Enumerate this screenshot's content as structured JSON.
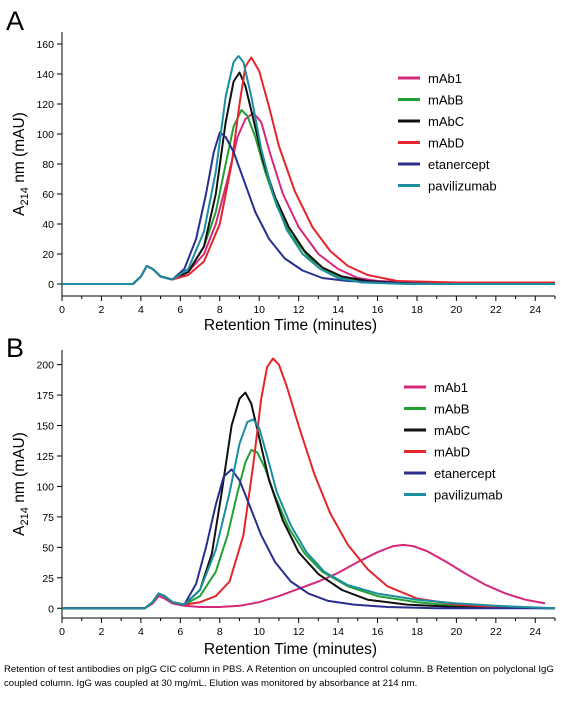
{
  "caption": "Retention of test antibodies on pIgG CIC column in PBS. A Retention on uncoupled control column. B Retention on polyclonal IgG coupled column. IgG was coupled at 30 mg/mL. Elution was monitored by absorbance at 214 nm.",
  "colors": {
    "mAb1": "#d6287a",
    "mAbB": "#22a033",
    "mAbC": "#111111",
    "mAbD": "#e3262b",
    "etanercept": "#2a2f8f",
    "pavilizumab": "#1b8ea0"
  },
  "chart_data": [
    {
      "panel_label": "A",
      "type": "line",
      "xlabel": "Retention Time (minutes)",
      "ylabel_main": "A",
      "ylabel_sub": "214",
      "ylabel_rest": " nm (mAU)",
      "xlim": [
        0,
        25
      ],
      "ylim": [
        -8,
        168
      ],
      "xticks": [
        "0",
        "2",
        "4",
        "6",
        "8",
        "10",
        "12",
        "14",
        "16",
        "18",
        "20",
        "22",
        "24"
      ],
      "yticks": [
        "0",
        "20",
        "40",
        "60",
        "80",
        "100",
        "120",
        "140",
        "160"
      ],
      "legend_position": "top-right",
      "series": [
        {
          "name": "mAb1",
          "x": [
            0,
            3.6,
            4.0,
            4.3,
            4.6,
            5.0,
            5.6,
            6.4,
            7.2,
            7.8,
            8.4,
            8.9,
            9.3,
            9.7,
            10.1,
            10.6,
            11.2,
            12.0,
            13.0,
            14.0,
            15.0,
            16.0,
            18.0,
            21.0,
            25.0
          ],
          "y": [
            0,
            0,
            5,
            12,
            10,
            5,
            3,
            8,
            20,
            40,
            70,
            98,
            110,
            114,
            108,
            85,
            60,
            38,
            20,
            10,
            4,
            2,
            1,
            1,
            1
          ]
        },
        {
          "name": "mAbB",
          "x": [
            0,
            3.6,
            4.0,
            4.3,
            4.6,
            5.0,
            5.6,
            6.4,
            7.2,
            7.8,
            8.3,
            8.7,
            9.1,
            9.4,
            9.8,
            10.3,
            10.9,
            11.6,
            12.5,
            13.5,
            14.5,
            16.0,
            19.0,
            25.0
          ],
          "y": [
            0,
            0,
            5,
            12,
            10,
            5,
            3,
            8,
            25,
            48,
            80,
            105,
            116,
            112,
            98,
            75,
            52,
            33,
            18,
            8,
            3,
            1,
            0,
            0
          ]
        },
        {
          "name": "mAbC",
          "x": [
            0,
            3.6,
            4.0,
            4.3,
            4.6,
            5.0,
            5.6,
            6.4,
            7.2,
            7.8,
            8.3,
            8.7,
            9.0,
            9.3,
            9.7,
            10.2,
            10.8,
            11.5,
            12.3,
            13.2,
            14.2,
            15.5,
            18.0,
            25.0
          ],
          "y": [
            0,
            0,
            5,
            12,
            10,
            5,
            3,
            8,
            25,
            60,
            108,
            135,
            141,
            132,
            110,
            82,
            58,
            38,
            22,
            11,
            5,
            2,
            0,
            0
          ]
        },
        {
          "name": "mAbD",
          "x": [
            0,
            3.6,
            4.0,
            4.3,
            4.6,
            5.0,
            5.6,
            6.4,
            7.2,
            8.0,
            8.6,
            9.0,
            9.3,
            9.6,
            10.0,
            10.5,
            11.0,
            11.8,
            12.7,
            13.6,
            14.5,
            15.5,
            17.0,
            20.0,
            25.0
          ],
          "y": [
            0,
            0,
            5,
            12,
            10,
            5,
            3,
            6,
            15,
            40,
            80,
            120,
            145,
            151,
            142,
            118,
            92,
            62,
            38,
            22,
            12,
            6,
            2,
            1,
            1
          ]
        },
        {
          "name": "etanercept",
          "x": [
            0,
            3.6,
            4.0,
            4.3,
            4.6,
            5.0,
            5.6,
            6.2,
            6.8,
            7.3,
            7.7,
            8.0,
            8.3,
            8.7,
            9.2,
            9.8,
            10.5,
            11.3,
            12.2,
            13.2,
            14.5,
            16.0,
            19.0,
            25.0
          ],
          "y": [
            0,
            0,
            5,
            12,
            10,
            5,
            3,
            10,
            30,
            60,
            88,
            101,
            98,
            88,
            70,
            48,
            30,
            17,
            9,
            4,
            2,
            1,
            0,
            0
          ]
        },
        {
          "name": "pavilizumab",
          "x": [
            0,
            3.6,
            4.0,
            4.3,
            4.6,
            5.0,
            5.6,
            6.4,
            7.2,
            7.8,
            8.3,
            8.7,
            8.95,
            9.2,
            9.6,
            10.1,
            10.7,
            11.4,
            12.2,
            13.1,
            14.0,
            15.2,
            17.5,
            25.0
          ],
          "y": [
            0,
            0,
            5,
            12,
            10,
            5,
            3,
            10,
            35,
            75,
            125,
            148,
            152,
            148,
            125,
            90,
            60,
            36,
            20,
            10,
            4,
            1,
            0,
            0
          ]
        }
      ]
    },
    {
      "panel_label": "B",
      "type": "line",
      "xlabel": "Retention Time (minutes)",
      "ylabel_main": "A",
      "ylabel_sub": "214",
      "ylabel_rest": " nm (mAU)",
      "xlim": [
        0,
        25
      ],
      "ylim": [
        -8,
        212
      ],
      "xticks": [
        "0",
        "2",
        "4",
        "6",
        "8",
        "10",
        "12",
        "14",
        "16",
        "18",
        "20",
        "22",
        "24"
      ],
      "yticks": [
        "0",
        "25",
        "50",
        "75",
        "100",
        "125",
        "150",
        "175",
        "200"
      ],
      "legend_position": "top-right",
      "series": [
        {
          "name": "mAb1",
          "x": [
            0,
            4.2,
            4.6,
            4.9,
            5.2,
            5.6,
            6.2,
            7.0,
            8.0,
            9.0,
            10.0,
            11.0,
            12.0,
            13.0,
            14.0,
            15.0,
            16.0,
            16.8,
            17.3,
            17.8,
            18.5,
            19.5,
            20.5,
            21.5,
            22.5,
            23.5,
            24.5
          ],
          "y": [
            0,
            0,
            4,
            10,
            8,
            4,
            2,
            1,
            1,
            2,
            5,
            10,
            16,
            22,
            29,
            38,
            46,
            51,
            52,
            51,
            47,
            38,
            28,
            19,
            12,
            7,
            4
          ]
        },
        {
          "name": "mAbB",
          "x": [
            0,
            4.2,
            4.6,
            4.9,
            5.2,
            5.6,
            6.2,
            7.0,
            7.8,
            8.4,
            8.9,
            9.3,
            9.6,
            9.9,
            10.3,
            10.8,
            11.5,
            12.3,
            13.2,
            14.5,
            16.0,
            18.0,
            20.0,
            22.0,
            25.0
          ],
          "y": [
            0,
            0,
            5,
            12,
            10,
            5,
            3,
            10,
            30,
            60,
            95,
            120,
            130,
            128,
            115,
            92,
            66,
            45,
            30,
            18,
            10,
            5,
            2,
            1,
            0
          ]
        },
        {
          "name": "mAbC",
          "x": [
            0,
            4.2,
            4.6,
            4.9,
            5.2,
            5.6,
            6.2,
            7.0,
            7.6,
            8.1,
            8.6,
            9.0,
            9.3,
            9.6,
            10.0,
            10.5,
            11.2,
            12.0,
            13.0,
            14.2,
            15.5,
            17.5,
            20.0,
            25.0
          ],
          "y": [
            0,
            0,
            5,
            12,
            10,
            5,
            3,
            15,
            45,
            95,
            150,
            172,
            177,
            168,
            140,
            105,
            72,
            46,
            28,
            15,
            7,
            3,
            1,
            0
          ]
        },
        {
          "name": "mAbD",
          "x": [
            0,
            4.2,
            4.6,
            4.9,
            5.2,
            5.6,
            6.2,
            7.0,
            7.8,
            8.5,
            9.2,
            9.7,
            10.1,
            10.4,
            10.7,
            11.0,
            11.4,
            12.0,
            12.8,
            13.6,
            14.5,
            15.5,
            16.5,
            18.0,
            20.0,
            22.0,
            25.0
          ],
          "y": [
            0,
            0,
            5,
            12,
            10,
            5,
            3,
            5,
            10,
            22,
            60,
            118,
            172,
            198,
            205,
            200,
            182,
            150,
            110,
            78,
            52,
            32,
            18,
            8,
            3,
            1,
            0
          ]
        },
        {
          "name": "etanercept",
          "x": [
            0,
            4.2,
            4.6,
            4.9,
            5.2,
            5.6,
            6.2,
            6.8,
            7.3,
            7.8,
            8.2,
            8.6,
            9.0,
            9.5,
            10.1,
            10.8,
            11.6,
            12.5,
            13.5,
            14.8,
            16.5,
            19.0,
            22.0,
            25.0
          ],
          "y": [
            0,
            0,
            5,
            12,
            10,
            5,
            3,
            20,
            50,
            85,
            108,
            114,
            105,
            85,
            60,
            38,
            22,
            12,
            6,
            3,
            1,
            0,
            0,
            0
          ]
        },
        {
          "name": "pavilizumab",
          "x": [
            0,
            4.2,
            4.6,
            4.9,
            5.2,
            5.6,
            6.2,
            7.0,
            7.8,
            8.5,
            9.0,
            9.4,
            9.7,
            10.0,
            10.4,
            10.9,
            11.6,
            12.4,
            13.3,
            14.5,
            16.0,
            18.0,
            20.0,
            22.0,
            25.0
          ],
          "y": [
            0,
            0,
            5,
            12,
            10,
            5,
            3,
            15,
            48,
            95,
            135,
            153,
            155,
            148,
            125,
            95,
            68,
            46,
            30,
            19,
            12,
            7,
            4,
            2,
            0
          ]
        }
      ]
    }
  ]
}
